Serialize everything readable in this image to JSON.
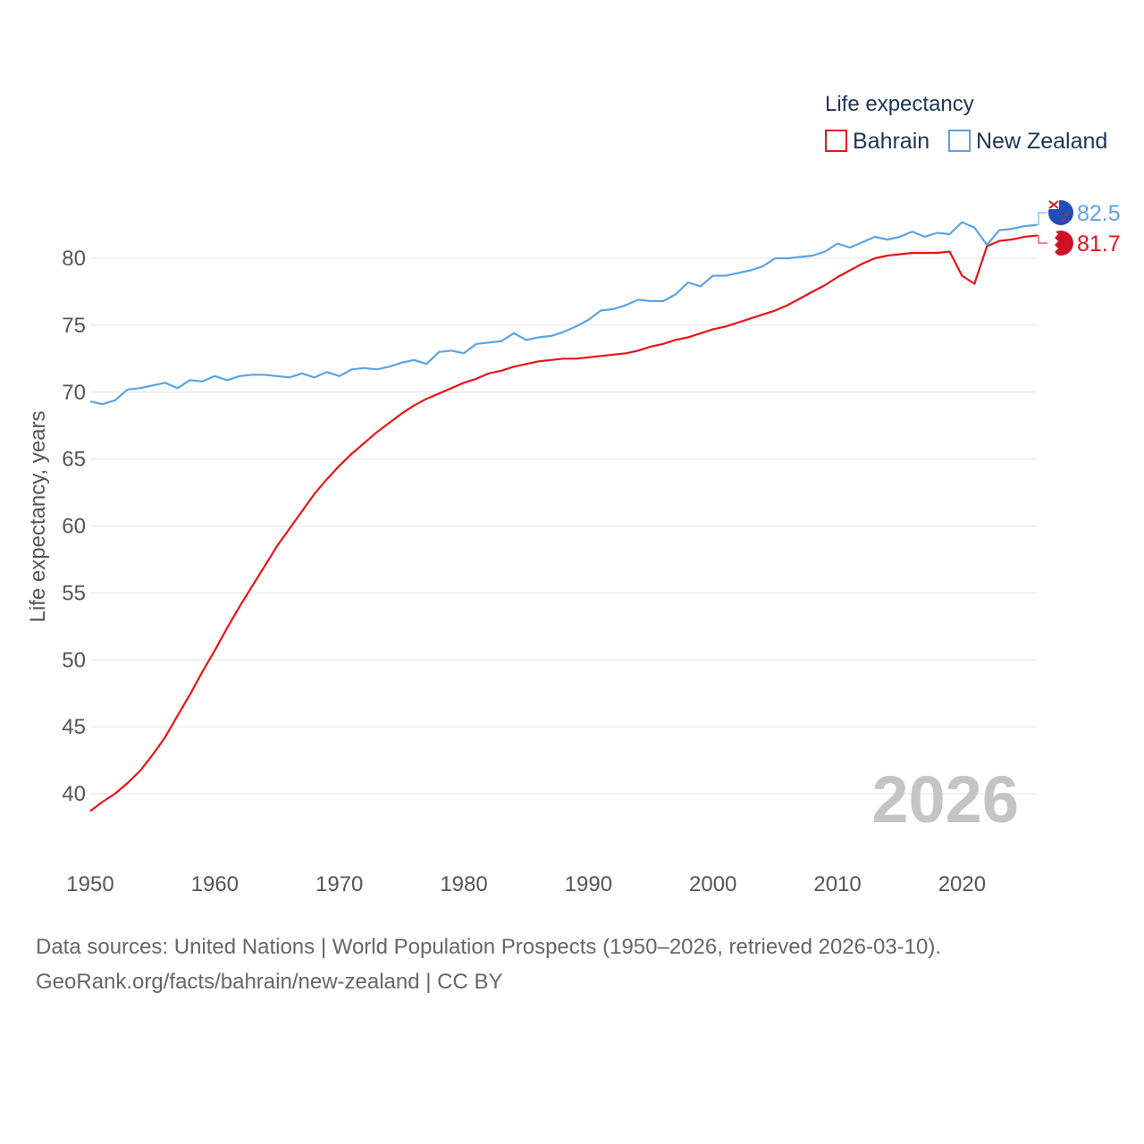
{
  "chart_data": {
    "type": "line",
    "title": "Life expectancy",
    "ylabel": "Life expectancy, years",
    "xlabel": "",
    "year_label": "2026",
    "ylim": [
      37,
      83.5
    ],
    "xlim": [
      1950,
      2026
    ],
    "yticks": [
      40,
      45,
      50,
      55,
      60,
      65,
      70,
      75,
      80
    ],
    "xticks": [
      1950,
      1960,
      1970,
      1980,
      1990,
      2000,
      2010,
      2020
    ],
    "legend_position": "top-right",
    "x": [
      1950,
      1951,
      1952,
      1953,
      1954,
      1955,
      1956,
      1957,
      1958,
      1959,
      1960,
      1961,
      1962,
      1963,
      1964,
      1965,
      1966,
      1967,
      1968,
      1969,
      1970,
      1971,
      1972,
      1973,
      1974,
      1975,
      1976,
      1977,
      1978,
      1979,
      1980,
      1981,
      1982,
      1983,
      1984,
      1985,
      1986,
      1987,
      1988,
      1989,
      1990,
      1991,
      1992,
      1993,
      1994,
      1995,
      1996,
      1997,
      1998,
      1999,
      2000,
      2001,
      2002,
      2003,
      2004,
      2005,
      2006,
      2007,
      2008,
      2009,
      2010,
      2011,
      2012,
      2013,
      2014,
      2015,
      2016,
      2017,
      2018,
      2019,
      2020,
      2021,
      2022,
      2023,
      2024,
      2025,
      2026
    ],
    "series": [
      {
        "name": "Bahrain",
        "color": "#e8141a",
        "end_value_label": "81.7",
        "flag": "bahrain-flag",
        "values": [
          38.7,
          39.4,
          40.0,
          40.8,
          41.7,
          42.9,
          44.2,
          45.8,
          47.4,
          49.1,
          50.7,
          52.4,
          54.0,
          55.5,
          57.0,
          58.5,
          59.8,
          61.1,
          62.4,
          63.5,
          64.5,
          65.4,
          66.2,
          67.0,
          67.7,
          68.4,
          69.0,
          69.5,
          69.9,
          70.3,
          70.7,
          71.0,
          71.4,
          71.6,
          71.9,
          72.1,
          72.3,
          72.4,
          72.5,
          72.5,
          72.6,
          72.7,
          72.8,
          72.9,
          73.1,
          73.4,
          73.6,
          73.9,
          74.1,
          74.4,
          74.7,
          74.9,
          75.2,
          75.5,
          75.8,
          76.1,
          76.5,
          77.0,
          77.5,
          78.0,
          78.6,
          79.1,
          79.6,
          80.0,
          80.2,
          80.3,
          80.4,
          80.4,
          80.4,
          80.5,
          78.7,
          78.1,
          80.9,
          81.3,
          81.4,
          81.6,
          81.7
        ]
      },
      {
        "name": "New Zealand",
        "color": "#5ba3e6",
        "end_value_label": "82.5",
        "flag": "new-zealand-flag",
        "values": [
          69.3,
          69.1,
          69.4,
          70.2,
          70.3,
          70.5,
          70.7,
          70.3,
          70.9,
          70.8,
          71.2,
          70.9,
          71.2,
          71.3,
          71.3,
          71.2,
          71.1,
          71.4,
          71.1,
          71.5,
          71.2,
          71.7,
          71.8,
          71.7,
          71.9,
          72.2,
          72.4,
          72.1,
          73.0,
          73.1,
          72.9,
          73.6,
          73.7,
          73.8,
          74.4,
          73.9,
          74.1,
          74.2,
          74.5,
          74.9,
          75.4,
          76.1,
          76.2,
          76.5,
          76.9,
          76.8,
          76.8,
          77.3,
          78.2,
          77.9,
          78.7,
          78.7,
          78.9,
          79.1,
          79.4,
          80.0,
          80.0,
          80.1,
          80.2,
          80.5,
          81.1,
          80.8,
          81.2,
          81.6,
          81.4,
          81.6,
          82.0,
          81.6,
          81.9,
          81.8,
          82.7,
          82.3,
          81.0,
          82.1,
          82.2,
          82.4,
          82.5
        ]
      }
    ]
  },
  "source": {
    "line1": "Data sources: United Nations | World Population Prospects (1950–2026, retrieved 2026-03-10).",
    "line2": "GeoRank.org/facts/bahrain/new-zealand | CC BY"
  }
}
